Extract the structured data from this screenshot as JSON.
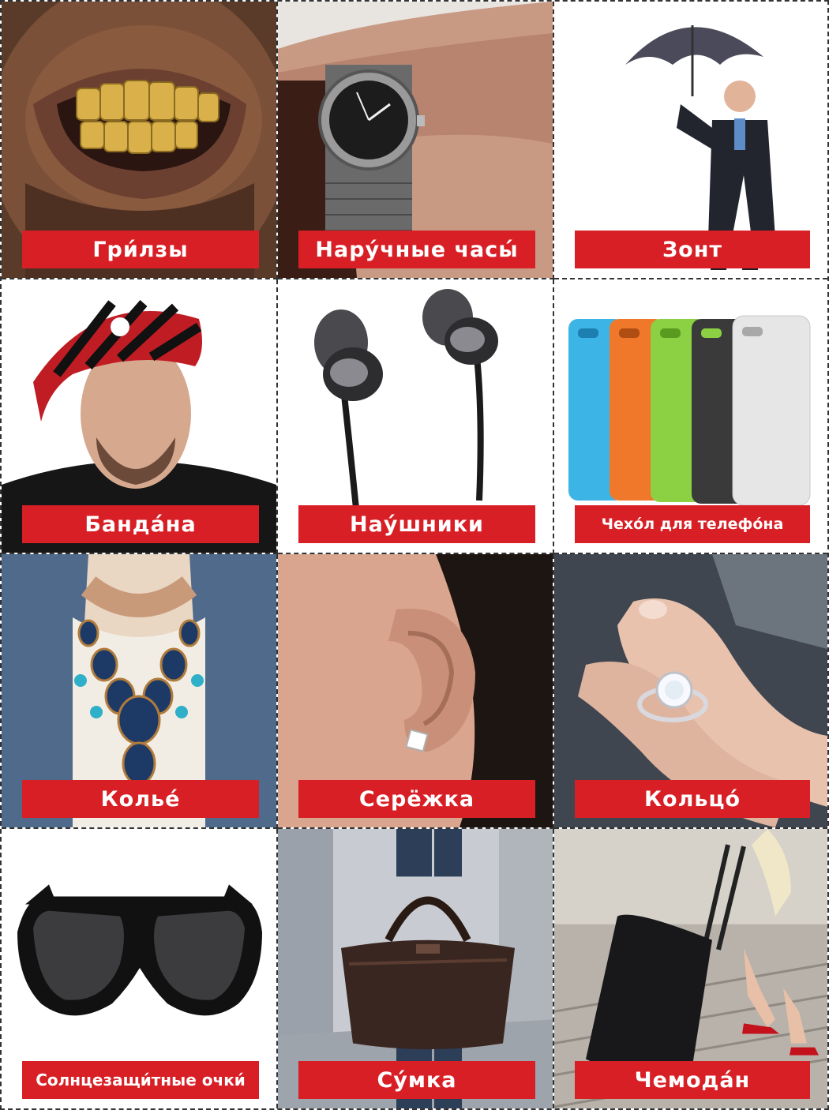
{
  "cards": [
    {
      "label": "Гри́лзы",
      "icon": "gold-teeth-grillz-icon"
    },
    {
      "label": "Нару́чные часы́",
      "icon": "wristwatch-icon"
    },
    {
      "label": "Зонт",
      "icon": "umbrella-icon"
    },
    {
      "label": "Банда́на",
      "icon": "bandana-icon"
    },
    {
      "label": "Нау́шники",
      "icon": "earphones-icon"
    },
    {
      "label": "Чехо́л для телефо́на",
      "icon": "phone-case-icon"
    },
    {
      "label": "Колье́",
      "icon": "necklace-icon"
    },
    {
      "label": "Серёжка",
      "icon": "earring-icon"
    },
    {
      "label": "Кольцо́",
      "icon": "ring-icon"
    },
    {
      "label": "Солнцезащи́тные очки́",
      "icon": "sunglasses-icon"
    },
    {
      "label": "Су́мка",
      "icon": "bag-icon"
    },
    {
      "label": "Чемода́н",
      "icon": "suitcase-icon"
    }
  ],
  "colors": {
    "label_background": "#d81f26",
    "label_text": "#ffffff",
    "cut_line": "#333333"
  }
}
